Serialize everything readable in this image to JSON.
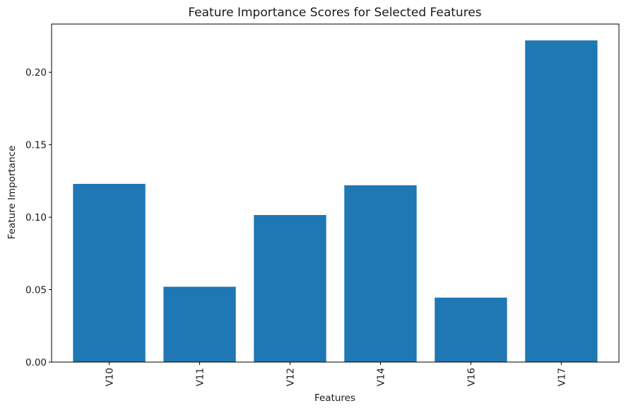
{
  "chart_data": {
    "type": "bar",
    "title": "Feature Importance Scores for Selected Features",
    "xlabel": "Features",
    "ylabel": "Feature Importance",
    "categories": [
      "V10",
      "V11",
      "V12",
      "V14",
      "V16",
      "V17"
    ],
    "values": [
      0.123,
      0.052,
      0.1015,
      0.122,
      0.0445,
      0.222
    ],
    "ylim": [
      0,
      0.2333
    ],
    "yticks": [
      0.0,
      0.05,
      0.1,
      0.15,
      0.2
    ],
    "ytick_labels": [
      "0.00",
      "0.05",
      "0.10",
      "0.15",
      "0.20"
    ],
    "bar_color": "#1f77b4",
    "grid": false,
    "legend": false,
    "xtick_rotation": "vertical"
  }
}
